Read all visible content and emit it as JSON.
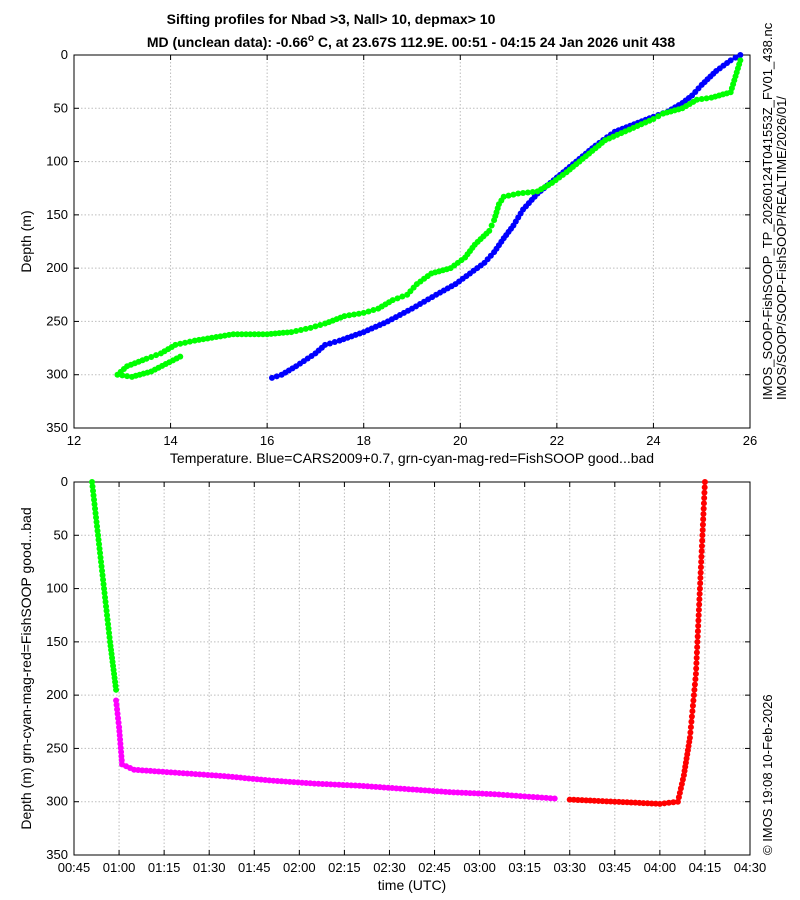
{
  "titles": {
    "line1": "Sifting profiles for Nbad >3, Nall> 10, depmax> 10",
    "line2_prefix": "MD (unclean data): -0.66",
    "line2_deg": "o",
    "line2_suffix": " C, at 23.67S 112.9E. 00:51 - 04:15 24 Jan 2026 unit 438"
  },
  "side_text": {
    "filename": "IMOS_SOOP-FishSOOP_TP_20260124T041553Z_FV01_438.nc",
    "path": "IMOS/SOOP/SOOP-FishSOOP/REALTIME/2026/01/",
    "credit": "© IMOS 19:08 10-Feb-2026"
  },
  "colors": {
    "good": "#00ff00",
    "cyan": "#00ffff",
    "magenta": "#ff00ff",
    "bad": "#ff0000",
    "cars": "#0000ff"
  },
  "chart_data": [
    {
      "type": "scatter",
      "xlabel": "Temperature. Blue=CARS2009+0.7, grn-cyan-mag-red=FishSOOP good...bad",
      "ylabel": "Depth (m)",
      "xlim": [
        12,
        26
      ],
      "ylim": [
        0,
        350
      ],
      "y_reversed": true,
      "xticks": [
        12,
        14,
        16,
        18,
        20,
        22,
        24,
        26
      ],
      "xtick_labels": [
        "12",
        "14",
        "16",
        "18",
        "20",
        "22",
        "24",
        "26"
      ],
      "yticks": [
        0,
        50,
        100,
        150,
        200,
        250,
        300,
        350
      ],
      "ytick_labels": [
        "0",
        "50",
        "100",
        "150",
        "200",
        "250",
        "300",
        "350"
      ],
      "grid": true,
      "series": [
        {
          "color": "blue",
          "points": [
            [
              25.8,
              0
            ],
            [
              25.6,
              5
            ],
            [
              25.3,
              15
            ],
            [
              25.0,
              28
            ],
            [
              24.8,
              38
            ],
            [
              24.6,
              45
            ],
            [
              24.3,
              53
            ],
            [
              24.0,
              58
            ],
            [
              23.6,
              65
            ],
            [
              23.2,
              72
            ],
            [
              22.8,
              85
            ],
            [
              22.4,
              100
            ],
            [
              22.0,
              115
            ],
            [
              21.6,
              130
            ],
            [
              21.3,
              145
            ],
            [
              21.1,
              160
            ],
            [
              20.9,
              172
            ],
            [
              20.7,
              185
            ],
            [
              20.5,
              195
            ],
            [
              20.2,
              205
            ],
            [
              19.9,
              215
            ],
            [
              19.5,
              225
            ],
            [
              19.0,
              238
            ],
            [
              18.5,
              250
            ],
            [
              18.0,
              260
            ],
            [
              17.5,
              268
            ],
            [
              17.2,
              272
            ],
            [
              17.0,
              280
            ],
            [
              16.6,
              292
            ],
            [
              16.3,
              300
            ],
            [
              16.1,
              303
            ]
          ]
        },
        {
          "color": "green",
          "points": [
            [
              25.8,
              5
            ],
            [
              25.7,
              20
            ],
            [
              25.6,
              35
            ],
            [
              25.2,
              40
            ],
            [
              24.9,
              42
            ],
            [
              24.6,
              50
            ],
            [
              24.2,
              55
            ],
            [
              24.0,
              60
            ],
            [
              23.5,
              70
            ],
            [
              23.0,
              80
            ],
            [
              22.6,
              95
            ],
            [
              22.2,
              110
            ],
            [
              21.9,
              120
            ],
            [
              21.6,
              128
            ],
            [
              21.2,
              130
            ],
            [
              20.9,
              133
            ],
            [
              20.8,
              140
            ],
            [
              20.7,
              155
            ],
            [
              20.6,
              165
            ],
            [
              20.3,
              178
            ],
            [
              20.1,
              190
            ],
            [
              19.8,
              200
            ],
            [
              19.4,
              205
            ],
            [
              19.1,
              215
            ],
            [
              18.9,
              225
            ],
            [
              18.6,
              230
            ],
            [
              18.3,
              238
            ],
            [
              18.0,
              242
            ],
            [
              17.6,
              245
            ],
            [
              17.2,
              252
            ],
            [
              16.9,
              256
            ],
            [
              16.5,
              260
            ],
            [
              16.0,
              262
            ],
            [
              15.3,
              262
            ],
            [
              14.5,
              268
            ],
            [
              14.1,
              272
            ],
            [
              13.8,
              280
            ],
            [
              13.5,
              285
            ],
            [
              13.1,
              292
            ],
            [
              12.9,
              300
            ],
            [
              13.2,
              302
            ],
            [
              13.6,
              297
            ],
            [
              14.2,
              283
            ]
          ]
        }
      ]
    },
    {
      "type": "scatter",
      "xlabel": "time (UTC)",
      "ylabel": "Depth (m) grn-cyan-mag-red=FishSOOP good...bad",
      "ylim": [
        0,
        350
      ],
      "y_reversed": true,
      "xtick_labels": [
        "00:45",
        "01:00",
        "01:15",
        "01:30",
        "01:45",
        "02:00",
        "02:15",
        "02:30",
        "02:45",
        "03:00",
        "03:15",
        "03:30",
        "03:45",
        "04:00",
        "04:15",
        "04:30"
      ],
      "yticks": [
        0,
        50,
        100,
        150,
        200,
        250,
        300,
        350
      ],
      "ytick_labels": [
        "0",
        "50",
        "100",
        "150",
        "200",
        "250",
        "300",
        "350"
      ],
      "grid": true,
      "series": [
        {
          "color": "green",
          "points": [
            [
              "00:51",
              0
            ],
            [
              "00:53",
              50
            ],
            [
              "00:55",
              100
            ],
            [
              "00:57",
              150
            ],
            [
              "00:59",
              195
            ]
          ]
        },
        {
          "color": "magenta",
          "points": [
            [
              "00:59",
              205
            ],
            [
              "01:00",
              230
            ],
            [
              "01:01",
              265
            ],
            [
              "01:05",
              270
            ],
            [
              "01:20",
              273
            ],
            [
              "01:35",
              276
            ],
            [
              "01:50",
              280
            ],
            [
              "02:05",
              283
            ],
            [
              "02:20",
              285
            ],
            [
              "02:35",
              288
            ],
            [
              "02:50",
              291
            ],
            [
              "03:05",
              293
            ],
            [
              "03:15",
              295
            ],
            [
              "03:25",
              297
            ]
          ]
        },
        {
          "color": "red",
          "points": [
            [
              "03:30",
              298
            ],
            [
              "03:45",
              300
            ],
            [
              "04:00",
              302
            ],
            [
              "04:06",
              300
            ],
            [
              "04:08",
              275
            ],
            [
              "04:10",
              240
            ],
            [
              "04:12",
              180
            ],
            [
              "04:13",
              120
            ],
            [
              "04:14",
              60
            ],
            [
              "04:15",
              0
            ]
          ]
        }
      ]
    }
  ]
}
